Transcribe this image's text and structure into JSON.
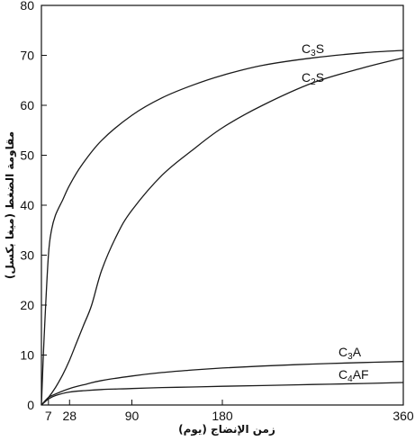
{
  "chart_data": {
    "type": "line",
    "xlabel": "زمن الإنضاج (يوم)",
    "ylabel": "مقاومة الضغط (ميغا بكسل)",
    "xlim": [
      0,
      360
    ],
    "ylim": [
      0,
      80
    ],
    "x_ticks": [
      7,
      28,
      90,
      180,
      360
    ],
    "y_ticks": [
      0,
      10,
      20,
      30,
      40,
      50,
      60,
      70,
      80
    ],
    "grid": false,
    "series": [
      {
        "name": "C3S",
        "label_main": "C",
        "label_sub": "3",
        "label_end": "S",
        "x": [
          0,
          3,
          7,
          10,
          14,
          21,
          28,
          40,
          60,
          90,
          120,
          150,
          180,
          220,
          270,
          320,
          360
        ],
        "y": [
          0,
          15,
          30,
          35,
          38,
          41,
          44,
          48,
          53,
          58,
          61.5,
          64,
          66,
          68,
          69.5,
          70.5,
          71
        ]
      },
      {
        "name": "C2S",
        "label_main": "C",
        "label_sub": "2",
        "label_end": "S",
        "x": [
          0,
          7,
          14,
          21,
          28,
          35,
          42,
          50,
          60,
          75,
          90,
          120,
          150,
          180,
          220,
          270,
          320,
          360
        ],
        "y": [
          0,
          1.5,
          3.5,
          6,
          9,
          12.5,
          16,
          20,
          27,
          34,
          39,
          46,
          51,
          55.5,
          60,
          64.5,
          67.5,
          69.5
        ]
      },
      {
        "name": "C3A",
        "label_main": "C",
        "label_sub": "3",
        "label_end": "A",
        "x": [
          0,
          7,
          14,
          28,
          45,
          60,
          90,
          120,
          150,
          180,
          220,
          270,
          320,
          360
        ],
        "y": [
          0,
          1.5,
          2.2,
          3.3,
          4.2,
          4.9,
          5.8,
          6.5,
          7.0,
          7.4,
          7.8,
          8.2,
          8.5,
          8.7
        ]
      },
      {
        "name": "C4AF",
        "label_main": "C",
        "label_sub": "4",
        "label_end": "AF",
        "x": [
          0,
          7,
          14,
          28,
          45,
          60,
          90,
          120,
          150,
          180,
          220,
          270,
          320,
          360
        ],
        "y": [
          0,
          1.2,
          1.9,
          2.6,
          2.9,
          3.1,
          3.3,
          3.5,
          3.6,
          3.75,
          3.9,
          4.1,
          4.3,
          4.5
        ]
      }
    ]
  },
  "colors": {
    "axis": "#111111",
    "line": "#1a1a1a",
    "background": "#ffffff"
  }
}
